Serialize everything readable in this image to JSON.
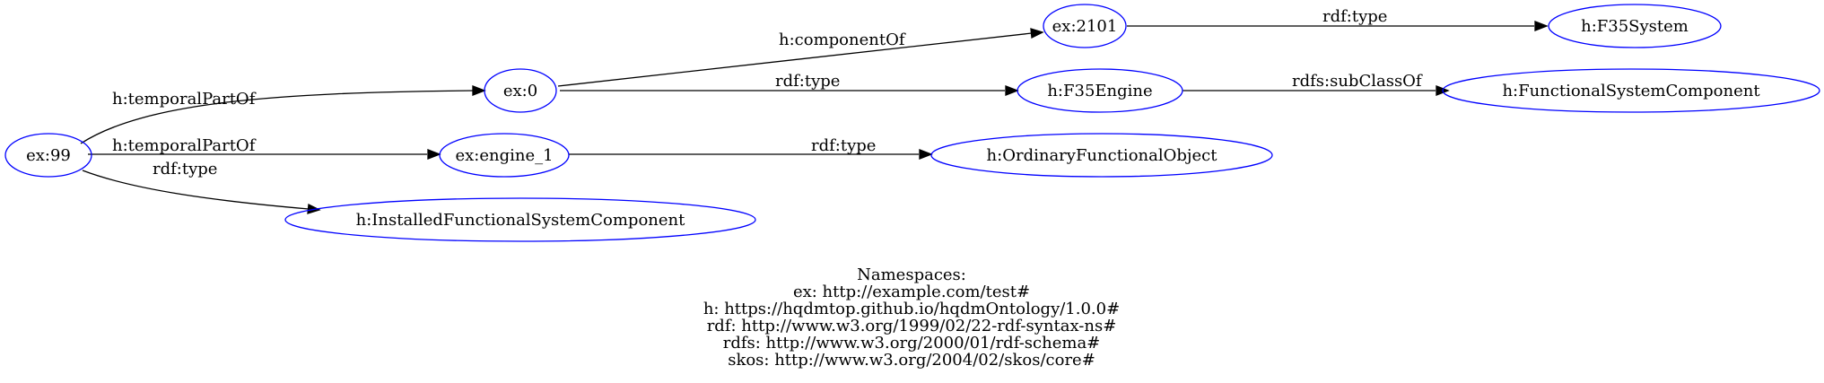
{
  "nodes": {
    "ex99": "ex:99",
    "ex0": "ex:0",
    "ex2101": "ex:2101",
    "f35system": "h:F35System",
    "f35engine": "h:F35Engine",
    "functional_system_component": "h:FunctionalSystemComponent",
    "engine1": "ex:engine_1",
    "ordinary_functional_object": "h:OrdinaryFunctionalObject",
    "installed_functional_system_component": "h:InstalledFunctionalSystemComponent"
  },
  "edges": {
    "ex99_ex0": "h:temporalPartOf",
    "ex99_engine1": "h:temporalPartOf",
    "ex99_installed": "rdf:type",
    "ex0_ex2101": "h:componentOf",
    "ex0_f35engine": "rdf:type",
    "ex2101_f35system": "rdf:type",
    "f35engine_fsc": "rdfs:subClassOf",
    "engine1_ofo": "rdf:type"
  },
  "colors": {
    "node_stroke": "#0000ff",
    "edge": "#000000"
  },
  "namespaces": {
    "title": "Namespaces:",
    "lines": [
      "ex: http://example.com/test#",
      "h: https://hqdmtop.github.io/hqdmOntology/1.0.0#",
      "rdf: http://www.w3.org/1999/02/22-rdf-syntax-ns#",
      "rdfs: http://www.w3.org/2000/01/rdf-schema#",
      "skos: http://www.w3.org/2004/02/skos/core#"
    ]
  }
}
